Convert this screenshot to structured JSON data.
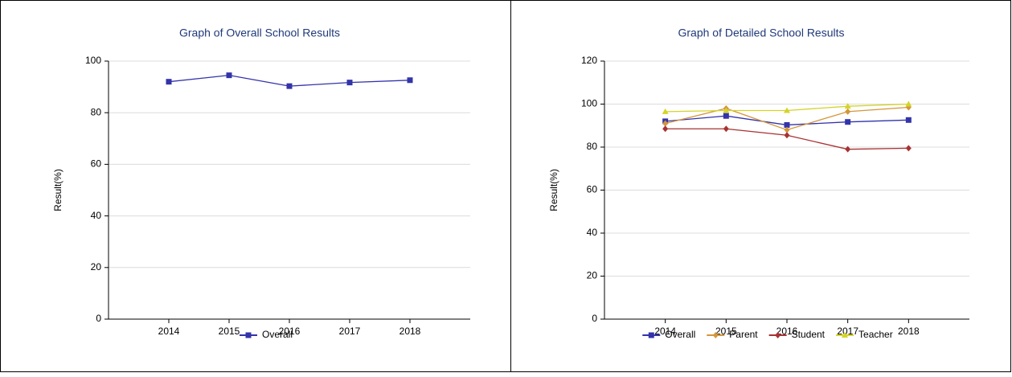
{
  "chart_data": [
    {
      "type": "line",
      "title": "Graph of Overall School Results",
      "y_label": "Result(%)",
      "categories": [
        "2014",
        "2015",
        "2016",
        "2017",
        "2018"
      ],
      "series": [
        {
          "name": "Overall",
          "color": "#3333aa",
          "marker": "square",
          "values": [
            92,
            94.5,
            90.3,
            91.7,
            92.6
          ]
        }
      ],
      "ylim": [
        0,
        100
      ],
      "yticks": [
        0,
        20,
        40,
        60,
        80,
        100
      ],
      "grid": true,
      "legend": "bottom"
    },
    {
      "type": "line",
      "title": "Graph of Detailed School Results",
      "y_label": "Result(%)",
      "categories": [
        "2014",
        "2015",
        "2016",
        "2017",
        "2018"
      ],
      "series": [
        {
          "name": "Overall",
          "color": "#3333aa",
          "marker": "square",
          "values": [
            92,
            94.5,
            90.3,
            91.7,
            92.6
          ]
        },
        {
          "name": "Parent",
          "color": "#d4963a",
          "marker": "diamond",
          "values": [
            91,
            98,
            88,
            96.5,
            98.5
          ]
        },
        {
          "name": "Student",
          "color": "#a83232",
          "marker": "diamond",
          "values": [
            88.5,
            88.5,
            85.5,
            79,
            79.5
          ]
        },
        {
          "name": "Teacher",
          "color": "#d4d42a",
          "marker": "triangle",
          "values": [
            96.5,
            97,
            97,
            99,
            100
          ]
        }
      ],
      "ylim": [
        0,
        120
      ],
      "yticks": [
        0,
        20,
        40,
        60,
        80,
        100,
        120
      ],
      "grid": true,
      "legend": "bottom"
    }
  ]
}
